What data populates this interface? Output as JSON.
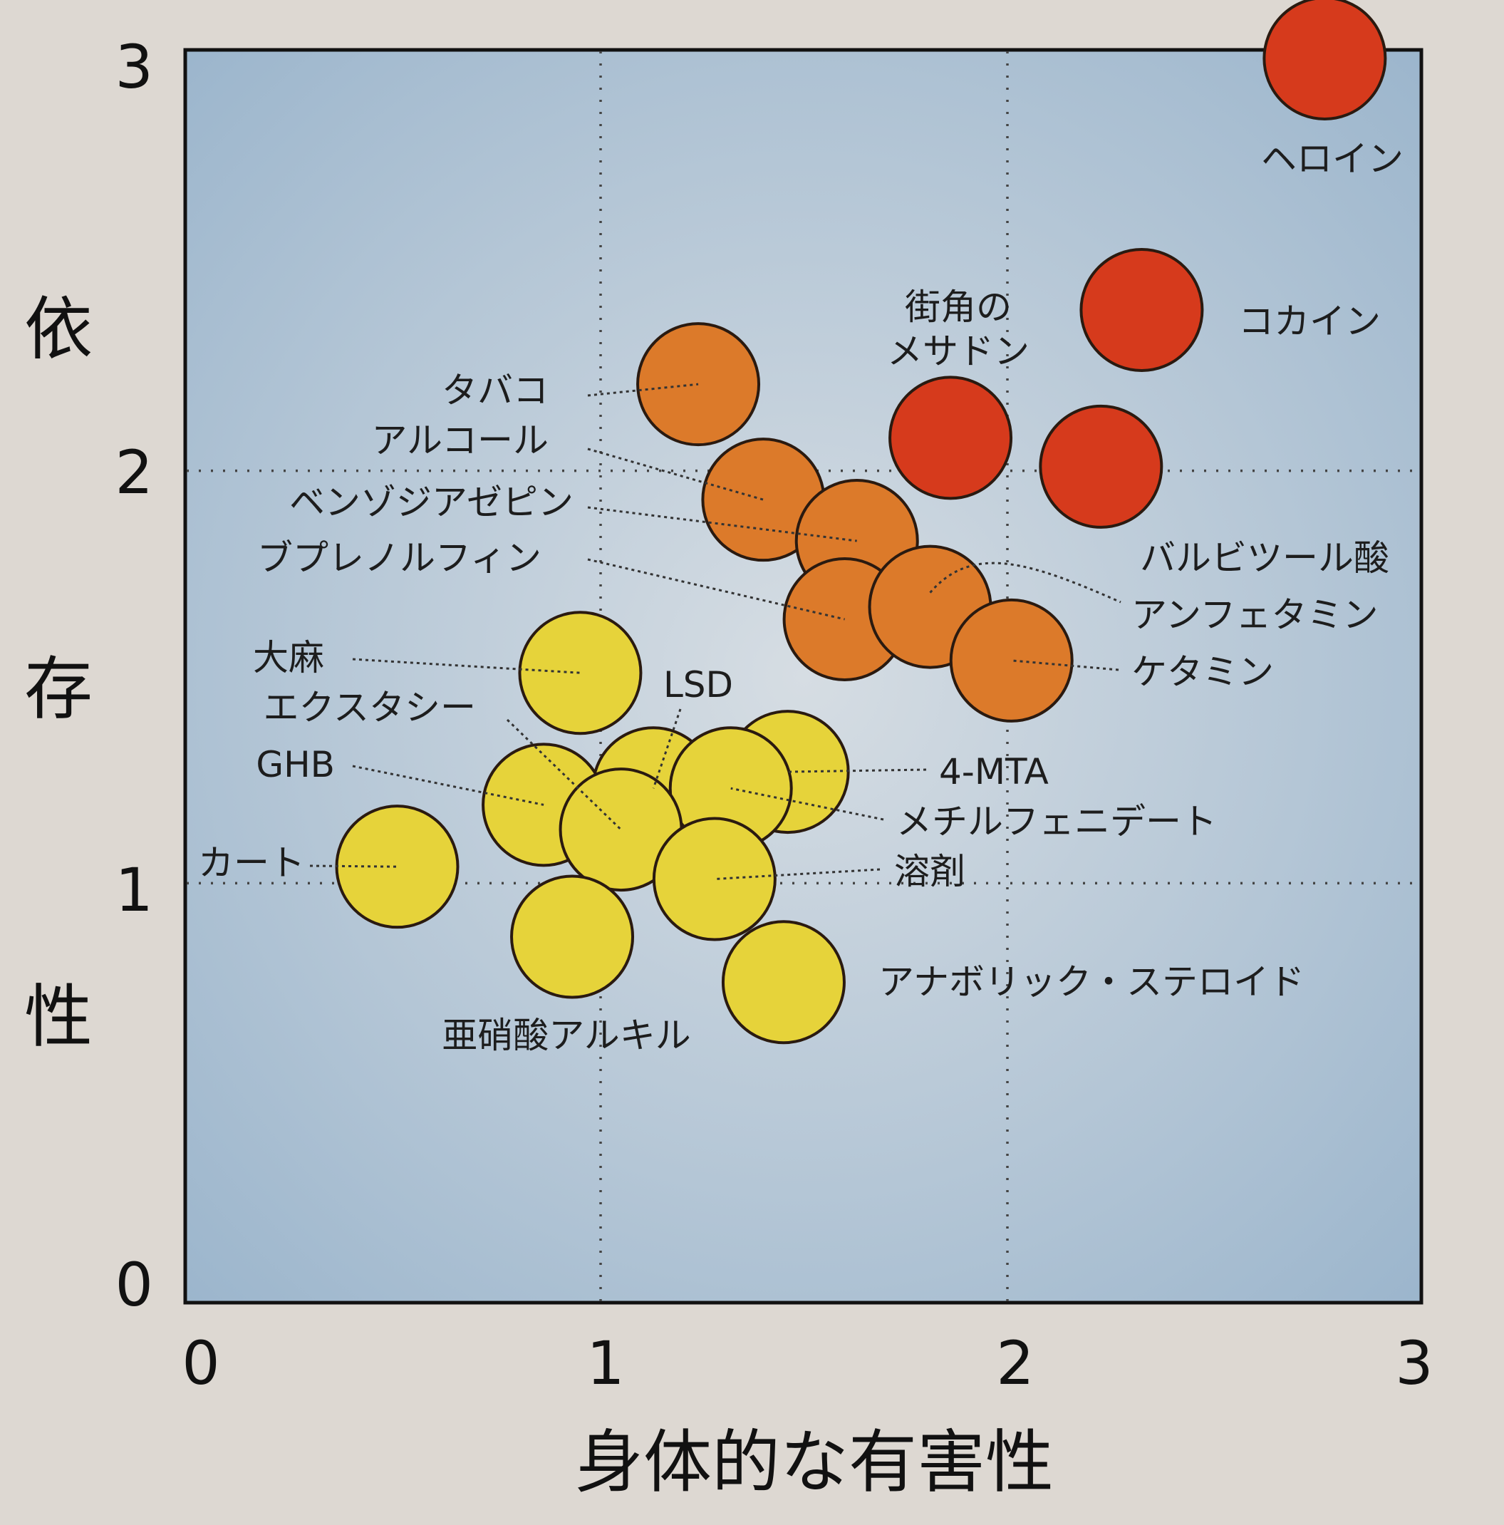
{
  "chart_data": {
    "type": "scatter",
    "xlabel": "身体的な有害性",
    "ylabel": "依存性",
    "xlim": [
      0,
      3
    ],
    "ylim": [
      0,
      3
    ],
    "x_ticks": [
      "0",
      "1",
      "2",
      "3"
    ],
    "y_ticks": [
      "0",
      "1",
      "2",
      "3"
    ],
    "grid": "dotted at 1 and 2",
    "colors": {
      "high": "#d63a1c",
      "medium": "#dc7a2a",
      "low": "#e6d33a",
      "background": "#aabed1"
    },
    "points": [
      {
        "name": "ヘロイン",
        "x": 2.78,
        "y": 3.0,
        "group": "high"
      },
      {
        "name": "コカイン",
        "x": 2.33,
        "y": 2.39,
        "group": "high"
      },
      {
        "name": "街角のメサドン",
        "x": 1.86,
        "y": 2.08,
        "group": "high"
      },
      {
        "name": "バルビツール酸",
        "x": 2.23,
        "y": 2.01,
        "group": "high"
      },
      {
        "name": "タバコ",
        "x": 1.24,
        "y": 2.21,
        "group": "medium"
      },
      {
        "name": "アルコール",
        "x": 1.4,
        "y": 1.93,
        "group": "medium"
      },
      {
        "name": "ベンゾジアゼピン",
        "x": 1.63,
        "y": 1.83,
        "group": "medium"
      },
      {
        "name": "ブプレノルフィン",
        "x": 1.6,
        "y": 1.64,
        "group": "medium"
      },
      {
        "name": "アンフェタミン",
        "x": 1.81,
        "y": 1.67,
        "group": "medium"
      },
      {
        "name": "ケタミン",
        "x": 2.01,
        "y": 1.54,
        "group": "medium"
      },
      {
        "name": "大麻",
        "x": 0.95,
        "y": 1.51,
        "group": "low"
      },
      {
        "name": "LSD",
        "x": 1.13,
        "y": 1.23,
        "group": "low"
      },
      {
        "name": "4-MTA",
        "x": 1.46,
        "y": 1.27,
        "group": "low"
      },
      {
        "name": "メチルフェニデート",
        "x": 1.32,
        "y": 1.23,
        "group": "low"
      },
      {
        "name": "GHB",
        "x": 0.86,
        "y": 1.19,
        "group": "low"
      },
      {
        "name": "エクスタシー",
        "x": 1.05,
        "y": 1.13,
        "group": "low"
      },
      {
        "name": "カート",
        "x": 0.5,
        "y": 1.04,
        "group": "low"
      },
      {
        "name": "溶剤",
        "x": 1.28,
        "y": 1.01,
        "group": "low"
      },
      {
        "name": "亜硝酸アルキル",
        "x": 0.93,
        "y": 0.87,
        "group": "low"
      },
      {
        "name": "アナボリック・ステロイド",
        "x": 1.45,
        "y": 0.76,
        "group": "low"
      }
    ]
  }
}
